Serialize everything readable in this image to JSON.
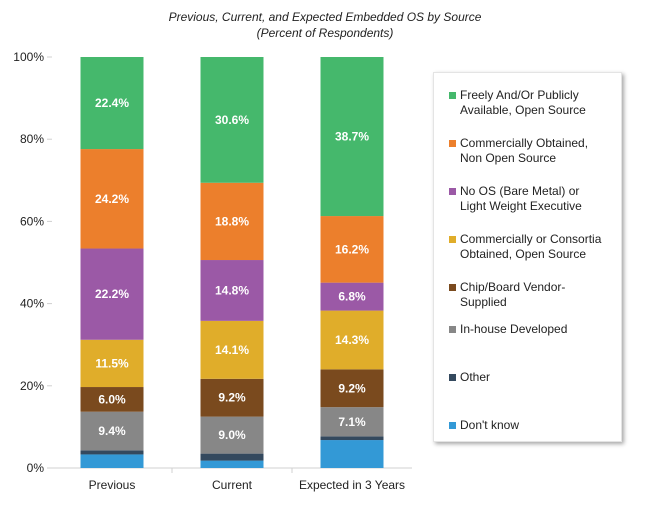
{
  "chart_data": {
    "type": "bar",
    "stacked": true,
    "title": "Previous, Current, and Expected Embedded OS by Source",
    "subtitle": "(Percent of Respondents)",
    "xlabel": "",
    "ylabel": "",
    "ylim": [
      0,
      100
    ],
    "yticks": [
      "0%",
      "20%",
      "40%",
      "60%",
      "80%",
      "100%"
    ],
    "categories": [
      "Previous",
      "Current",
      "Expected in 3 Years"
    ],
    "legend_position": "right",
    "series": [
      {
        "name": "Don't know",
        "color": "#3399d6",
        "values": [
          3.3,
          1.8,
          6.8
        ],
        "labels": [
          "",
          "",
          ""
        ]
      },
      {
        "name": "Other",
        "color": "#34495e",
        "values": [
          1.0,
          1.7,
          0.9
        ],
        "labels": [
          "",
          "",
          ""
        ]
      },
      {
        "name": "In-house Developed",
        "color": "#878787",
        "values": [
          9.4,
          9.0,
          7.1
        ],
        "labels": [
          "9.4%",
          "9.0%",
          "7.1%"
        ]
      },
      {
        "name": "Chip/Board Vendor-Supplied",
        "color": "#7a4a1e",
        "values": [
          6.0,
          9.2,
          9.2
        ],
        "labels": [
          "6.0%",
          "9.2%",
          "9.2%"
        ]
      },
      {
        "name": "Commercially or Consortia Obtained, Open Source",
        "color": "#e0ad2a",
        "values": [
          11.5,
          14.1,
          14.3
        ],
        "labels": [
          "11.5%",
          "14.1%",
          "14.3%"
        ]
      },
      {
        "name": "No OS (Bare Metal) or Light Weight Executive",
        "color": "#9b59a6",
        "values": [
          22.2,
          14.8,
          6.8
        ],
        "labels": [
          "22.2%",
          "14.8%",
          "6.8%"
        ]
      },
      {
        "name": "Commercially Obtained, Non Open Source",
        "color": "#ec7f2c",
        "values": [
          24.2,
          18.8,
          16.2
        ],
        "labels": [
          "24.2%",
          "18.8%",
          "16.2%"
        ]
      },
      {
        "name": "Freely And/Or Publicly Available, Open Source",
        "color": "#45b86c",
        "values": [
          22.4,
          30.6,
          38.7
        ],
        "labels": [
          "22.4%",
          "30.6%",
          "38.7%"
        ]
      }
    ],
    "legend": [
      {
        "line1": "Freely And/Or Publicly",
        "line2": "Available, Open Source",
        "color": "#45b86c"
      },
      {
        "line1": "Commercially Obtained,",
        "line2": "Non Open Source",
        "color": "#ec7f2c"
      },
      {
        "line1": "No OS (Bare Metal) or",
        "line2": "Light Weight Executive",
        "color": "#9b59a6"
      },
      {
        "line1": "Commercially or Consortia",
        "line2": "Obtained, Open Source",
        "color": "#e0ad2a"
      },
      {
        "line1": "Chip/Board Vendor-",
        "line2": "Supplied",
        "color": "#7a4a1e"
      },
      {
        "line1": "In-house Developed",
        "line2": "",
        "color": "#878787"
      },
      {
        "line1": "Other",
        "line2": "",
        "color": "#34495e"
      },
      {
        "line1": "Don't know",
        "line2": "",
        "color": "#3399d6"
      }
    ]
  }
}
